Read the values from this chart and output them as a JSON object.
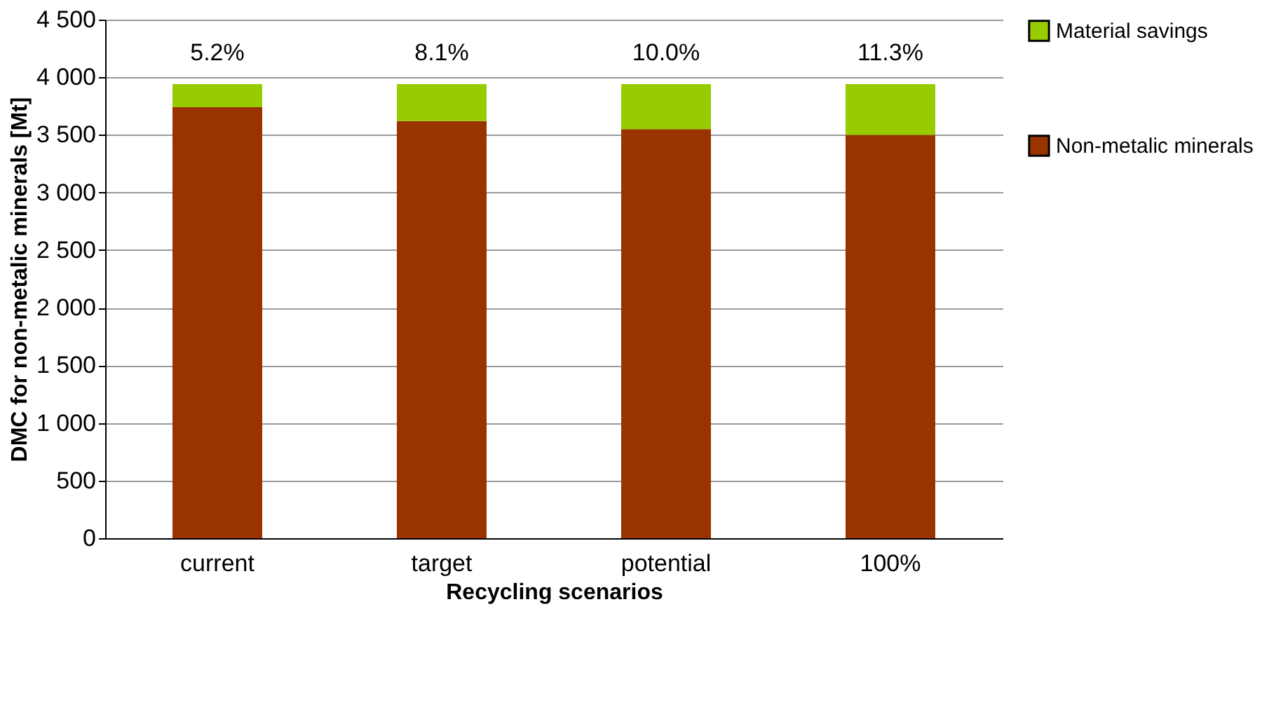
{
  "chart_data": {
    "type": "bar",
    "stacked": true,
    "xlabel": "Recycling scenarios",
    "ylabel": "DMC for non-metalic minerals [Mt]",
    "categories": [
      "current",
      "target",
      "potential",
      "100%"
    ],
    "series": [
      {
        "name": "Non-metalic minerals",
        "color": "#993300",
        "values": [
          3740,
          3620,
          3550,
          3500
        ]
      },
      {
        "name": "Material savings",
        "color": "#99cc00",
        "values": [
          200,
          320,
          390,
          440
        ]
      }
    ],
    "ylim": [
      0,
      4500
    ],
    "yticks": [
      0,
      500,
      {
        "value": 1000,
        "label": "1 000"
      },
      {
        "value": 1500,
        "label": "1 500"
      },
      {
        "value": 2000,
        "label": "2 000"
      },
      {
        "value": 2500,
        "label": "2 500"
      },
      {
        "value": 3000,
        "label": "3 000"
      },
      {
        "value": 3500,
        "label": "3 500"
      },
      {
        "value": 4000,
        "label": "4 000"
      },
      {
        "value": 4500,
        "label": "4 500"
      }
    ],
    "annotations": [
      "5.2%",
      "8.1%",
      "10.0%",
      "11.3%"
    ],
    "grid": "y",
    "legend": "right"
  }
}
